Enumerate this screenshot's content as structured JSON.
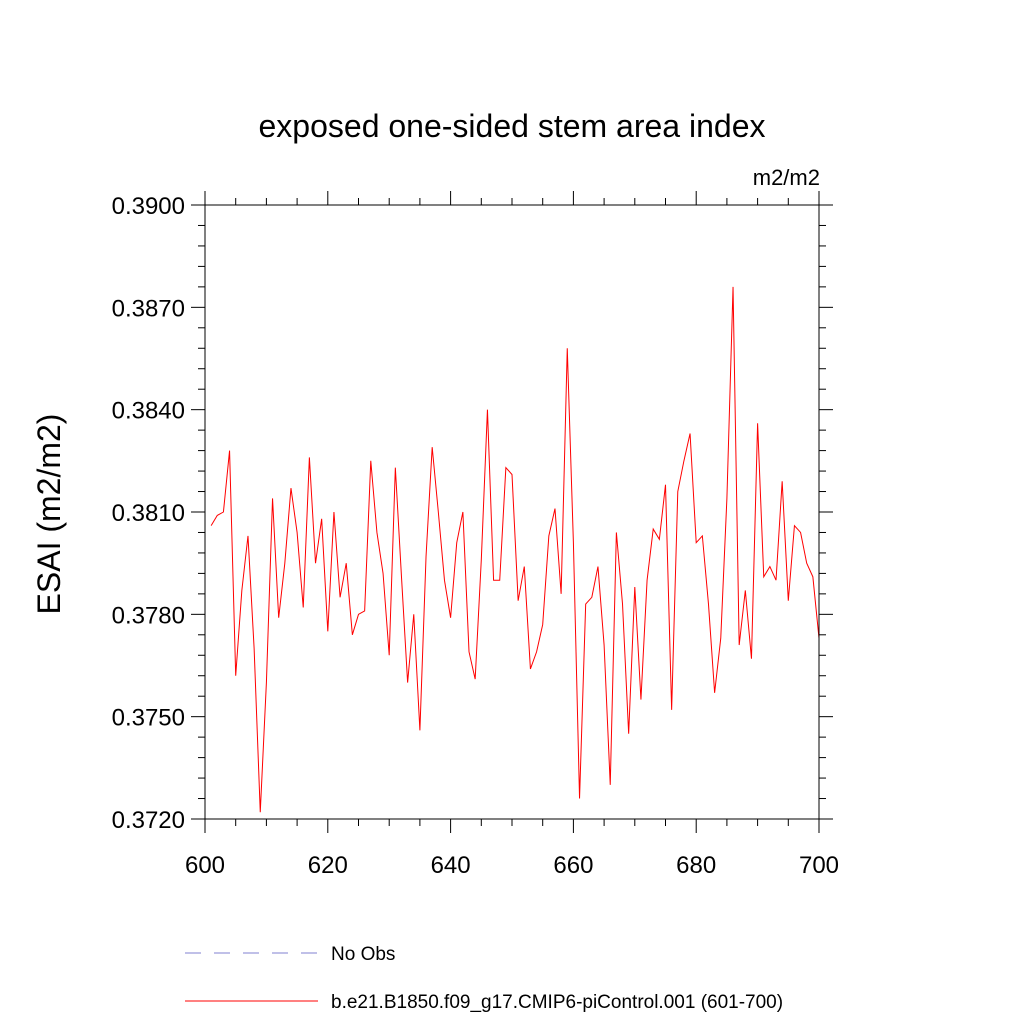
{
  "chart_data": {
    "type": "line",
    "title": "exposed one-sided stem area index",
    "units": "m2/m2",
    "xlabel": "",
    "ylabel": "ESAI  (m2/m2)",
    "xlim": [
      600,
      700
    ],
    "ylim": [
      0.372,
      0.39
    ],
    "xticks": [
      600,
      620,
      640,
      660,
      680,
      700
    ],
    "yticks": [
      "0.3720",
      "0.3750",
      "0.3780",
      "0.3810",
      "0.3840",
      "0.3870",
      "0.3900"
    ],
    "yticks_values": [
      0.372,
      0.375,
      0.378,
      0.381,
      0.384,
      0.387,
      0.39
    ],
    "legend": [
      {
        "label": "No Obs",
        "style": "dashed",
        "color": "#8080d0"
      },
      {
        "label": "b.e21.B1850.f09_g17.CMIP6-piControl.001 (601-700)",
        "style": "solid",
        "color": "#ff0000"
      }
    ],
    "series": [
      {
        "name": "b.e21.B1850.f09_g17.CMIP6-piControl.001 (601-700)",
        "color": "#ff0000",
        "x": [
          601,
          602,
          603,
          604,
          605,
          606,
          607,
          608,
          609,
          610,
          611,
          612,
          613,
          614,
          615,
          616,
          617,
          618,
          619,
          620,
          621,
          622,
          623,
          624,
          625,
          626,
          627,
          628,
          629,
          630,
          631,
          632,
          633,
          634,
          635,
          636,
          637,
          638,
          639,
          640,
          641,
          642,
          643,
          644,
          645,
          646,
          647,
          648,
          649,
          650,
          651,
          652,
          653,
          654,
          655,
          656,
          657,
          658,
          659,
          660,
          661,
          662,
          663,
          664,
          665,
          666,
          667,
          668,
          669,
          670,
          671,
          672,
          673,
          674,
          675,
          676,
          677,
          678,
          679,
          680,
          681,
          682,
          683,
          684,
          685,
          686,
          687,
          688,
          689,
          690,
          691,
          692,
          693,
          694,
          695,
          696,
          697,
          698,
          699,
          700
        ],
        "values": [
          0.3806,
          0.3809,
          0.381,
          0.3828,
          0.3762,
          0.3787,
          0.3803,
          0.377,
          0.3722,
          0.376,
          0.3814,
          0.3779,
          0.3795,
          0.3817,
          0.3804,
          0.3782,
          0.3826,
          0.3795,
          0.3808,
          0.3775,
          0.381,
          0.3785,
          0.3795,
          0.3774,
          0.378,
          0.3781,
          0.3825,
          0.3804,
          0.3792,
          0.3768,
          0.3823,
          0.3791,
          0.376,
          0.378,
          0.3746,
          0.3797,
          0.3829,
          0.381,
          0.379,
          0.3779,
          0.3801,
          0.381,
          0.3769,
          0.3761,
          0.3796,
          0.384,
          0.379,
          0.379,
          0.3823,
          0.3821,
          0.3784,
          0.3794,
          0.3764,
          0.3769,
          0.3777,
          0.3803,
          0.3811,
          0.3786,
          0.3858,
          0.3801,
          0.3726,
          0.3783,
          0.3785,
          0.3794,
          0.3771,
          0.373,
          0.3804,
          0.3783,
          0.3745,
          0.3788,
          0.3755,
          0.379,
          0.3805,
          0.3802,
          0.3818,
          0.3752,
          0.3816,
          0.3825,
          0.3833,
          0.3801,
          0.3803,
          0.3783,
          0.3757,
          0.3773,
          0.3814,
          0.3876,
          0.3771,
          0.3787,
          0.3767,
          0.3836,
          0.3791,
          0.3794,
          0.379,
          0.3819,
          0.3784,
          0.3806,
          0.3804,
          0.3795,
          0.3791,
          0.3773
        ]
      }
    ]
  }
}
